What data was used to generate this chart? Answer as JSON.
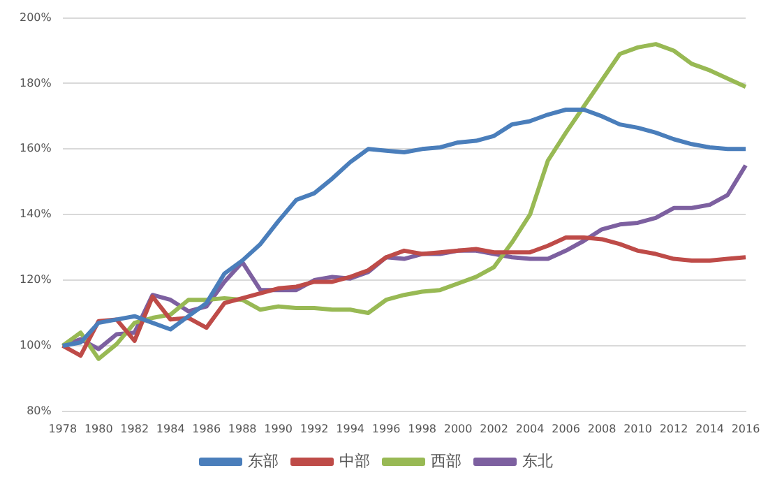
{
  "chart_data": {
    "type": "line",
    "categories": [
      "1978",
      null,
      "1980",
      null,
      "1982",
      null,
      "1984",
      null,
      "1986",
      null,
      "1988",
      null,
      "1990",
      null,
      "1992",
      null,
      "1994",
      null,
      "1996",
      null,
      "1998",
      null,
      "2000",
      null,
      "2002",
      null,
      "2004",
      null,
      "2006",
      null,
      "2008",
      null,
      "2010",
      null,
      "2012",
      null,
      "2014",
      null,
      "2016"
    ],
    "series": [
      {
        "name": "东部",
        "color": "#4a7ebb",
        "values": [
          100,
          101,
          107,
          108,
          109,
          107,
          105,
          109,
          113,
          122,
          126,
          131,
          138,
          144.5,
          146.5,
          151,
          156,
          160,
          159.5,
          159,
          160,
          160.5,
          162,
          162.5,
          164,
          167.5,
          168.5,
          170.5,
          172,
          172,
          170,
          167.5,
          166.5,
          165,
          163,
          161.5,
          160.5,
          160,
          160
        ]
      },
      {
        "name": "中部",
        "color": "#be4b48",
        "values": [
          100,
          97,
          107.5,
          108,
          101.5,
          115,
          108,
          108.5,
          105.5,
          113,
          114.5,
          116,
          117.5,
          118,
          119.5,
          119.5,
          121,
          123,
          127,
          129,
          128,
          128.5,
          129,
          129.5,
          128.5,
          128.5,
          128.5,
          130.5,
          133,
          133,
          132.5,
          131,
          129,
          128,
          126.5,
          126,
          126,
          126.5,
          127
        ]
      },
      {
        "name": "西部",
        "color": "#98b954",
        "values": [
          100,
          104,
          96,
          100.5,
          107,
          108.5,
          109.5,
          114,
          114,
          114.5,
          114,
          111,
          112,
          111.5,
          111.5,
          111,
          111,
          110,
          114,
          115.5,
          116.5,
          117,
          119,
          121,
          124,
          131.5,
          140,
          156.5,
          165,
          173,
          181,
          189,
          191,
          192,
          190,
          186,
          184,
          181.5,
          179
        ]
      },
      {
        "name": "东北",
        "color": "#7d60a0",
        "values": [
          100,
          102,
          99,
          103.5,
          104,
          115.5,
          114,
          110.5,
          112,
          119.5,
          125.5,
          117,
          117,
          117,
          120,
          121,
          120.5,
          122.5,
          127,
          126.5,
          128,
          128,
          129,
          129,
          128,
          127,
          126.5,
          126.5,
          129,
          132,
          135.5,
          137,
          137.5,
          139,
          142,
          142,
          143,
          146,
          155
        ]
      }
    ],
    "ylim": [
      80,
      200
    ],
    "yticks": [
      {
        "value": 80,
        "label": "80%"
      },
      {
        "value": 100,
        "label": "100%"
      },
      {
        "value": 120,
        "label": "120%"
      },
      {
        "value": 140,
        "label": "140%"
      },
      {
        "value": 160,
        "label": "160%"
      },
      {
        "value": 180,
        "label": "180%"
      },
      {
        "value": 200,
        "label": "200%"
      }
    ],
    "grid": "y",
    "legend": "bottom",
    "marker": "none",
    "line_style": "solid"
  }
}
